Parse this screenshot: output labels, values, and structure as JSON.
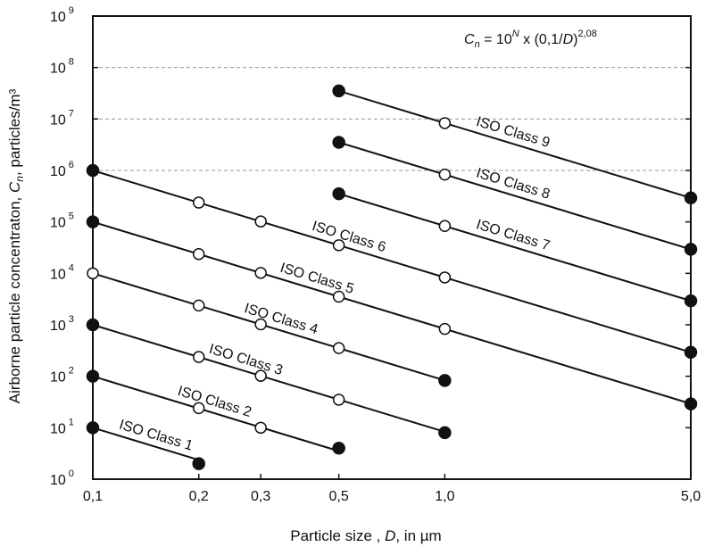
{
  "chart_data": {
    "type": "line",
    "title": "",
    "formula": {
      "lhs": "C",
      "lhs_sub": "n",
      "mid": " = 10",
      "exp_N": "N",
      "rest": " x (0,1/",
      "D": "D",
      "close": ")",
      "exp": "2,08"
    },
    "xlabel": {
      "pre": "Particle size , ",
      "var": "D",
      "post": ", in µm"
    },
    "ylabel": {
      "pre": "Airborne particle concentraton,  ",
      "var": "C",
      "sub": "n",
      "post": ",  particles/m³"
    },
    "x_scale": "log",
    "y_scale": "log",
    "xlim": [
      0.1,
      5.0
    ],
    "ylim": [
      1,
      1000000000
    ],
    "x_ticks": [
      {
        "value": 0.1,
        "label": "0,1"
      },
      {
        "value": 0.2,
        "label": "0,2"
      },
      {
        "value": 0.3,
        "label": "0,3"
      },
      {
        "value": 0.5,
        "label": "0,5"
      },
      {
        "value": 1.0,
        "label": "1,0"
      },
      {
        "value": 5.0,
        "label": "5,0"
      }
    ],
    "y_ticks": [
      {
        "value": 1,
        "base": "10",
        "exp": "0"
      },
      {
        "value": 10,
        "base": "10",
        "exp": "1"
      },
      {
        "value": 100,
        "base": "10",
        "exp": "2"
      },
      {
        "value": 1000,
        "base": "10",
        "exp": "3"
      },
      {
        "value": 10000,
        "base": "10",
        "exp": "4"
      },
      {
        "value": 100000,
        "base": "10",
        "exp": "5"
      },
      {
        "value": 1000000,
        "base": "10",
        "exp": "6"
      },
      {
        "value": 10000000,
        "base": "10",
        "exp": "7"
      },
      {
        "value": 100000000,
        "base": "10",
        "exp": "8"
      },
      {
        "value": 1000000000,
        "base": "10",
        "exp": "9"
      }
    ],
    "grid": "horizontal dashed, upper decades",
    "series": [
      {
        "name": "ISO Class 1",
        "N": 1,
        "x_start": 0.1,
        "x_end": 0.2,
        "points": [
          {
            "x": 0.1,
            "y": 10,
            "marker": "filled"
          },
          {
            "x": 0.2,
            "y": 2,
            "marker": "filled"
          }
        ]
      },
      {
        "name": "ISO Class 2",
        "N": 2,
        "x_start": 0.1,
        "x_end": 0.5,
        "points": [
          {
            "x": 0.1,
            "y": 100,
            "marker": "filled"
          },
          {
            "x": 0.2,
            "y": 24,
            "marker": "open"
          },
          {
            "x": 0.3,
            "y": 10,
            "marker": "open"
          },
          {
            "x": 0.5,
            "y": 4,
            "marker": "filled"
          }
        ]
      },
      {
        "name": "ISO Class 3",
        "N": 3,
        "x_start": 0.1,
        "x_end": 1.0,
        "points": [
          {
            "x": 0.1,
            "y": 1000,
            "marker": "filled"
          },
          {
            "x": 0.2,
            "y": 237,
            "marker": "open"
          },
          {
            "x": 0.3,
            "y": 102,
            "marker": "open"
          },
          {
            "x": 0.5,
            "y": 35,
            "marker": "open"
          },
          {
            "x": 1.0,
            "y": 8,
            "marker": "filled"
          }
        ]
      },
      {
        "name": "ISO Class 4",
        "N": 4,
        "x_start": 0.1,
        "x_end": 1.0,
        "points": [
          {
            "x": 0.1,
            "y": 10000,
            "marker": "open"
          },
          {
            "x": 0.2,
            "y": 2370,
            "marker": "open"
          },
          {
            "x": 0.3,
            "y": 1020,
            "marker": "open"
          },
          {
            "x": 0.5,
            "y": 352,
            "marker": "open"
          },
          {
            "x": 1.0,
            "y": 83,
            "marker": "filled"
          }
        ]
      },
      {
        "name": "ISO Class 5",
        "N": 5,
        "x_start": 0.1,
        "x_end": 5.0,
        "points": [
          {
            "x": 0.1,
            "y": 100000,
            "marker": "filled"
          },
          {
            "x": 0.2,
            "y": 23700,
            "marker": "open"
          },
          {
            "x": 0.3,
            "y": 10200,
            "marker": "open"
          },
          {
            "x": 0.5,
            "y": 3520,
            "marker": "open"
          },
          {
            "x": 1.0,
            "y": 832,
            "marker": "open"
          },
          {
            "x": 5.0,
            "y": 29,
            "marker": "filled"
          }
        ]
      },
      {
        "name": "ISO Class 6",
        "N": 6,
        "x_start": 0.1,
        "x_end": 5.0,
        "points": [
          {
            "x": 0.1,
            "y": 1000000,
            "marker": "filled"
          },
          {
            "x": 0.2,
            "y": 237000,
            "marker": "open"
          },
          {
            "x": 0.3,
            "y": 102000,
            "marker": "open"
          },
          {
            "x": 0.5,
            "y": 35200,
            "marker": "open"
          },
          {
            "x": 1.0,
            "y": 8320,
            "marker": "open"
          },
          {
            "x": 5.0,
            "y": 293,
            "marker": "filled"
          }
        ]
      },
      {
        "name": "ISO Class 7",
        "N": 7,
        "x_start": 0.5,
        "x_end": 5.0,
        "points": [
          {
            "x": 0.5,
            "y": 352000,
            "marker": "filled"
          },
          {
            "x": 1.0,
            "y": 83200,
            "marker": "open"
          },
          {
            "x": 5.0,
            "y": 2930,
            "marker": "filled"
          }
        ]
      },
      {
        "name": "ISO Class 8",
        "N": 8,
        "x_start": 0.5,
        "x_end": 5.0,
        "points": [
          {
            "x": 0.5,
            "y": 3520000,
            "marker": "filled"
          },
          {
            "x": 1.0,
            "y": 832000,
            "marker": "open"
          },
          {
            "x": 5.0,
            "y": 29300,
            "marker": "filled"
          }
        ]
      },
      {
        "name": "ISO Class 9",
        "N": 9,
        "x_start": 0.5,
        "x_end": 5.0,
        "points": [
          {
            "x": 0.5,
            "y": 35200000,
            "marker": "filled"
          },
          {
            "x": 1.0,
            "y": 8320000,
            "marker": "open"
          },
          {
            "x": 5.0,
            "y": 293000,
            "marker": "filled"
          }
        ]
      }
    ]
  }
}
